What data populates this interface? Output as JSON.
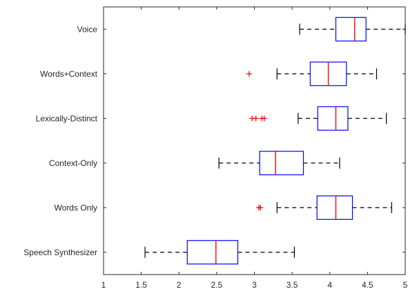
{
  "chart_data": {
    "type": "boxplot",
    "orientation": "horizontal",
    "title": "",
    "xlabel": "",
    "ylabel": "",
    "xlim": [
      1,
      5
    ],
    "xticks": [
      1,
      1.5,
      2,
      2.5,
      3,
      3.5,
      4,
      4.5,
      5
    ],
    "xtick_labels": [
      "1",
      "1.5",
      "2",
      "2.5",
      "3",
      "3.5",
      "4",
      "4.5",
      "5"
    ],
    "grid": false,
    "categories": [
      "Voice",
      "Words+Context",
      "Lexically-Distinct",
      "Context-Only",
      "Words Only",
      "Speech Synthesizer"
    ],
    "boxes": [
      {
        "label": "Voice",
        "whisker_low": 3.6,
        "q1": 4.08,
        "median": 4.33,
        "q3": 4.48,
        "whisker_high": 5.0,
        "outliers": []
      },
      {
        "label": "Words+Context",
        "whisker_low": 3.3,
        "q1": 3.74,
        "median": 3.98,
        "q3": 4.22,
        "whisker_high": 4.62,
        "outliers": [
          2.93
        ]
      },
      {
        "label": "Lexically-Distinct",
        "whisker_low": 3.58,
        "q1": 3.84,
        "median": 4.08,
        "q3": 4.24,
        "whisker_high": 4.75,
        "outliers": [
          2.97,
          3.02,
          3.1,
          3.13
        ]
      },
      {
        "label": "Context-Only",
        "whisker_low": 2.53,
        "q1": 3.07,
        "median": 3.28,
        "q3": 3.65,
        "whisker_high": 4.13,
        "outliers": []
      },
      {
        "label": "Words Only",
        "whisker_low": 3.3,
        "q1": 3.83,
        "median": 4.08,
        "q3": 4.3,
        "whisker_high": 4.82,
        "outliers": [
          3.06,
          3.08
        ]
      },
      {
        "label": "Speech Synthesizer",
        "whisker_low": 1.55,
        "q1": 2.11,
        "median": 2.49,
        "q3": 2.78,
        "whisker_high": 3.53,
        "outliers": []
      }
    ],
    "colors": {
      "box": "#0000ff",
      "median": "#ff0000",
      "whisker": "#000000",
      "outlier": "#ff0000",
      "axis": "#262626"
    }
  }
}
